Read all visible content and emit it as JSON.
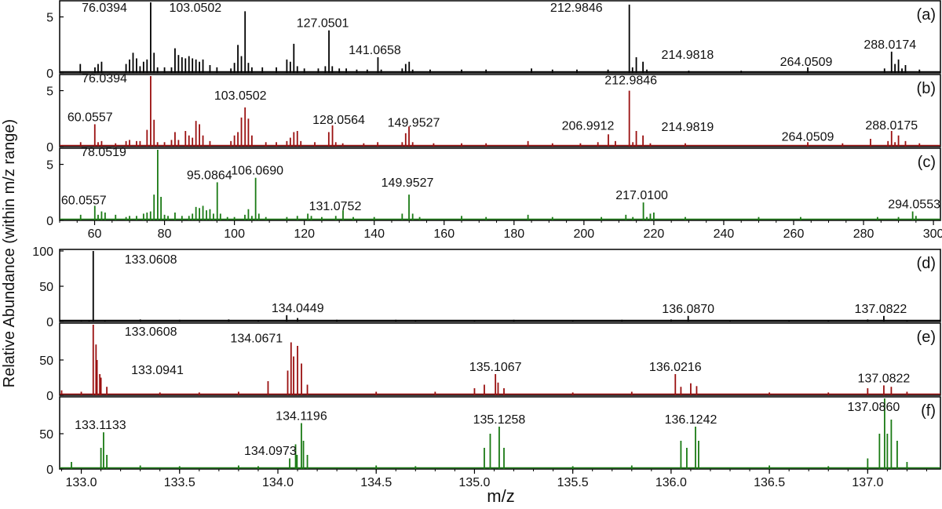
{
  "ylabel": "Relative Abundance (within m/z range)",
  "xlabel": "m/z",
  "chart_data": [
    {
      "type": "line",
      "id": "a",
      "panel_label": "(a)",
      "color": "#000000",
      "xlim": [
        50,
        302
      ],
      "ylim": [
        0,
        6.3
      ],
      "yticks": [
        0,
        5
      ],
      "ticks_on_axis": false,
      "peaks": [
        [
          55.9,
          0.8
        ],
        [
          60.1,
          0.5
        ],
        [
          61.0,
          0.8
        ],
        [
          62.0,
          1.0
        ],
        [
          69.0,
          0.8
        ],
        [
          70.0,
          1.2
        ],
        [
          71.0,
          1.8
        ],
        [
          72.0,
          1.3
        ],
        [
          73.0,
          0.6
        ],
        [
          74.0,
          1.0
        ],
        [
          75.0,
          1.2
        ],
        [
          76.0394,
          6.3
        ],
        [
          77.0,
          1.8
        ],
        [
          78.0,
          0.5
        ],
        [
          80.0,
          0.5
        ],
        [
          82.0,
          0.5
        ],
        [
          83.0,
          2.2
        ],
        [
          84.0,
          1.6
        ],
        [
          85.0,
          1.4
        ],
        [
          86.0,
          1.3
        ],
        [
          87.0,
          1.5
        ],
        [
          88.0,
          1.3
        ],
        [
          89.0,
          1.2
        ],
        [
          90.0,
          1.0
        ],
        [
          91.0,
          1.2
        ],
        [
          93.0,
          0.7
        ],
        [
          95.0,
          0.5
        ],
        [
          99.0,
          0.4
        ],
        [
          100.0,
          0.9
        ],
        [
          101.0,
          2.5
        ],
        [
          102.0,
          1.5
        ],
        [
          103.0502,
          5.5
        ],
        [
          104.0,
          0.9
        ],
        [
          105.0,
          0.5
        ],
        [
          108.0,
          0.5
        ],
        [
          112.0,
          0.5
        ],
        [
          115.0,
          1.2
        ],
        [
          116.0,
          1.0
        ],
        [
          117.0,
          2.6
        ],
        [
          118.0,
          0.6
        ],
        [
          120.0,
          0.4
        ],
        [
          124.0,
          0.4
        ],
        [
          126.0,
          0.6
        ],
        [
          127.0501,
          3.8
        ],
        [
          128.0,
          0.6
        ],
        [
          130.0,
          0.4
        ],
        [
          132.0,
          0.4
        ],
        [
          135.0,
          0.3
        ],
        [
          138.0,
          0.3
        ],
        [
          141.0658,
          1.4
        ],
        [
          142.0,
          0.3
        ],
        [
          148.0,
          0.4
        ],
        [
          149.0,
          0.8
        ],
        [
          150.0,
          1.0
        ],
        [
          151.0,
          0.3
        ],
        [
          156.0,
          0.3
        ],
        [
          165.0,
          0.3
        ],
        [
          172.0,
          0.3
        ],
        [
          185.0,
          0.4
        ],
        [
          191.0,
          0.3
        ],
        [
          198.0,
          0.3
        ],
        [
          206.9,
          0.3
        ],
        [
          212.9846,
          6.1
        ],
        [
          213.9,
          0.5
        ],
        [
          214.9818,
          1.4
        ],
        [
          216.9,
          1.0
        ],
        [
          218.0,
          0.3
        ],
        [
          230.0,
          0.2
        ],
        [
          245.0,
          0.2
        ],
        [
          264.0509,
          0.5
        ],
        [
          286.0,
          0.4
        ],
        [
          288.0174,
          1.9
        ],
        [
          289.0,
          0.8
        ],
        [
          290.0,
          1.2
        ],
        [
          291.0,
          0.4
        ],
        [
          292.0,
          0.7
        ],
        [
          296.0,
          0.3
        ]
      ],
      "labels": [
        "76.0394",
        "103.0502",
        "127.0501",
        "141.0658",
        "212.9846",
        "214.9818",
        "264.0509",
        "288.0174"
      ]
    },
    {
      "type": "line",
      "id": "b",
      "panel_label": "(b)",
      "color": "#9a1010",
      "xlim": [
        50,
        302
      ],
      "ylim": [
        0,
        6.3
      ],
      "yticks": [
        0,
        5
      ],
      "ticks_on_axis": false,
      "peaks": [
        [
          56.0,
          0.4
        ],
        [
          60.0557,
          2.0
        ],
        [
          61.0,
          0.4
        ],
        [
          62.0,
          0.5
        ],
        [
          66.0,
          0.3
        ],
        [
          69.0,
          0.5
        ],
        [
          70.0,
          0.6
        ],
        [
          72.0,
          0.5
        ],
        [
          73.0,
          0.5
        ],
        [
          75.0,
          1.5
        ],
        [
          76.0394,
          6.3
        ],
        [
          77.0,
          2.4
        ],
        [
          78.0,
          0.4
        ],
        [
          80.0,
          0.4
        ],
        [
          82.0,
          0.6
        ],
        [
          83.0,
          1.3
        ],
        [
          84.0,
          0.6
        ],
        [
          86.0,
          1.4
        ],
        [
          87.0,
          1.0
        ],
        [
          88.0,
          0.8
        ],
        [
          89.0,
          2.3
        ],
        [
          90.0,
          2.0
        ],
        [
          91.0,
          1.0
        ],
        [
          93.0,
          0.5
        ],
        [
          99.0,
          0.5
        ],
        [
          100.0,
          1.0
        ],
        [
          101.0,
          1.3
        ],
        [
          102.0,
          2.6
        ],
        [
          103.0502,
          3.5
        ],
        [
          104.0,
          2.5
        ],
        [
          105.0,
          1.0
        ],
        [
          109.0,
          0.4
        ],
        [
          112.0,
          0.4
        ],
        [
          115.0,
          0.5
        ],
        [
          116.0,
          0.8
        ],
        [
          117.0,
          1.3
        ],
        [
          118.0,
          1.4
        ],
        [
          119.0,
          0.5
        ],
        [
          123.0,
          0.4
        ],
        [
          127.0,
          1.3
        ],
        [
          128.0564,
          1.9
        ],
        [
          129.0,
          0.4
        ],
        [
          131.0,
          0.3
        ],
        [
          137.0,
          0.3
        ],
        [
          141.0,
          0.4
        ],
        [
          148.0,
          0.4
        ],
        [
          149.0,
          1.2
        ],
        [
          149.9527,
          1.8
        ],
        [
          151.0,
          0.4
        ],
        [
          157.0,
          0.3
        ],
        [
          165.0,
          0.3
        ],
        [
          172.0,
          0.3
        ],
        [
          184.0,
          0.5
        ],
        [
          191.0,
          0.3
        ],
        [
          199.0,
          0.3
        ],
        [
          204.0,
          0.4
        ],
        [
          206.9912,
          1.1
        ],
        [
          209.0,
          0.5
        ],
        [
          212.9846,
          5.0
        ],
        [
          214.0,
          0.4
        ],
        [
          214.9819,
          1.4
        ],
        [
          216.9,
          1.0
        ],
        [
          219.0,
          0.3
        ],
        [
          229.0,
          0.3
        ],
        [
          264.0509,
          0.4
        ],
        [
          274.0,
          0.3
        ],
        [
          282.0,
          0.7
        ],
        [
          287.0,
          0.5
        ],
        [
          288.0175,
          1.4
        ],
        [
          289.0,
          0.4
        ],
        [
          290.0,
          1.0
        ],
        [
          292.0,
          0.5
        ],
        [
          296.0,
          0.3
        ]
      ],
      "labels": [
        "60.0557",
        "76.0394",
        "103.0502",
        "128.0564",
        "149.9527",
        "206.9912",
        "212.9846",
        "214.9819",
        "264.0509",
        "288.0175"
      ]
    },
    {
      "type": "line",
      "id": "c",
      "panel_label": "(c)",
      "color": "#1a7a14",
      "xlim": [
        50,
        302
      ],
      "ylim": [
        0,
        6.3
      ],
      "yticks": [
        0,
        5
      ],
      "ticks_on_axis": false,
      "peaks": [
        [
          56.0,
          0.5
        ],
        [
          60.0557,
          1.3
        ],
        [
          61.0,
          0.5
        ],
        [
          62.0,
          0.8
        ],
        [
          63.0,
          0.7
        ],
        [
          66.0,
          0.5
        ],
        [
          69.0,
          0.3
        ],
        [
          70.0,
          0.4
        ],
        [
          72.0,
          0.4
        ],
        [
          74.0,
          0.6
        ],
        [
          75.0,
          0.7
        ],
        [
          76.0,
          0.8
        ],
        [
          77.0,
          2.3
        ],
        [
          78.0519,
          6.3
        ],
        [
          79.0,
          2.1
        ],
        [
          80.0,
          0.5
        ],
        [
          81.0,
          0.4
        ],
        [
          83.0,
          0.7
        ],
        [
          85.0,
          0.4
        ],
        [
          87.0,
          0.4
        ],
        [
          88.0,
          0.6
        ],
        [
          89.0,
          1.2
        ],
        [
          90.0,
          1.1
        ],
        [
          91.0,
          1.3
        ],
        [
          92.0,
          0.9
        ],
        [
          93.0,
          1.0
        ],
        [
          94.0,
          0.6
        ],
        [
          95.0864,
          3.4
        ],
        [
          96.0,
          0.6
        ],
        [
          98.0,
          0.3
        ],
        [
          100.0,
          0.3
        ],
        [
          103.0,
          0.5
        ],
        [
          104.0,
          1.0
        ],
        [
          105.0,
          0.4
        ],
        [
          106.069,
          3.8
        ],
        [
          107.0,
          0.6
        ],
        [
          109.0,
          0.3
        ],
        [
          115.0,
          0.3
        ],
        [
          118.0,
          0.4
        ],
        [
          121.0,
          0.6
        ],
        [
          122.0,
          0.4
        ],
        [
          125.0,
          0.3
        ],
        [
          129.0,
          0.4
        ],
        [
          131.0752,
          0.9
        ],
        [
          134.0,
          0.3
        ],
        [
          140.0,
          0.3
        ],
        [
          148.0,
          0.6
        ],
        [
          149.9527,
          2.3
        ],
        [
          151.0,
          0.6
        ],
        [
          153.0,
          0.3
        ],
        [
          165.0,
          0.4
        ],
        [
          172.0,
          0.3
        ],
        [
          184.0,
          0.5
        ],
        [
          191.0,
          0.3
        ],
        [
          205.0,
          0.3
        ],
        [
          212.0,
          0.5
        ],
        [
          214.0,
          0.3
        ],
        [
          217.01,
          1.6
        ],
        [
          218.0,
          0.3
        ],
        [
          219.0,
          0.6
        ],
        [
          220.0,
          0.7
        ],
        [
          229.0,
          0.3
        ],
        [
          250.0,
          0.3
        ],
        [
          262.0,
          0.3
        ],
        [
          284.0,
          0.3
        ],
        [
          290.0,
          0.3
        ],
        [
          294.0553,
          0.8
        ],
        [
          295.0,
          0.4
        ]
      ],
      "labels": [
        "60.0557",
        "78.0519",
        "95.0864",
        "106.0690",
        "131.0752",
        "149.9527",
        "217.0100",
        "294.0553"
      ]
    },
    {
      "type": "line",
      "id": "d",
      "panel_label": "(d)",
      "color": "#000000",
      "xlim": [
        132.89,
        137.37
      ],
      "ylim": [
        0,
        100
      ],
      "yticks": [
        0,
        50,
        100
      ],
      "ticks_on_axis": false,
      "peaks": [
        [
          133.0,
          1.0
        ],
        [
          133.04,
          2.0
        ],
        [
          133.0608,
          100
        ],
        [
          133.12,
          2.0
        ],
        [
          133.3,
          3.0
        ],
        [
          133.5,
          2.5
        ],
        [
          133.75,
          3.0
        ],
        [
          133.9,
          2.0
        ],
        [
          134.0449,
          9.0
        ],
        [
          134.1,
          5.0
        ],
        [
          134.3,
          2.5
        ],
        [
          134.6,
          2.5
        ],
        [
          134.7,
          2.0
        ],
        [
          135.0,
          2.0
        ],
        [
          135.2,
          2.5
        ],
        [
          135.5,
          2.0
        ],
        [
          135.75,
          2.5
        ],
        [
          136.0,
          3.0
        ],
        [
          136.087,
          8.0
        ],
        [
          136.3,
          2.0
        ],
        [
          136.6,
          2.0
        ],
        [
          136.8,
          2.0
        ],
        [
          137.0,
          3.0
        ],
        [
          137.0822,
          8.0
        ],
        [
          137.2,
          2.0
        ]
      ],
      "labels": [
        "133.0608",
        "134.0449",
        "136.0870",
        "137.0822"
      ]
    },
    {
      "type": "line",
      "id": "e",
      "panel_label": "(e)",
      "color": "#9a1010",
      "xlim": [
        132.89,
        137.37
      ],
      "ylim": [
        0,
        100
      ],
      "yticks": [
        0,
        50
      ],
      "ticks_on_axis": false,
      "peaks": [
        [
          132.9,
          7.0
        ],
        [
          133.0,
          5.0
        ],
        [
          133.0608,
          100
        ],
        [
          133.075,
          72.0
        ],
        [
          133.08,
          50.0
        ],
        [
          133.0941,
          30.0
        ],
        [
          133.1,
          25.0
        ],
        [
          133.13,
          12.0
        ],
        [
          133.4,
          4.0
        ],
        [
          133.6,
          4.0
        ],
        [
          133.8,
          5.0
        ],
        [
          133.95,
          20.0
        ],
        [
          134.05,
          35.0
        ],
        [
          134.0671,
          75.0
        ],
        [
          134.08,
          55.0
        ],
        [
          134.1,
          70.0
        ],
        [
          134.12,
          45.0
        ],
        [
          134.15,
          15.0
        ],
        [
          134.5,
          5.0
        ],
        [
          134.8,
          5.0
        ],
        [
          135.05,
          15.0
        ],
        [
          135.0,
          10.0
        ],
        [
          135.1067,
          30.0
        ],
        [
          135.12,
          18.0
        ],
        [
          135.15,
          10.0
        ],
        [
          135.5,
          4.0
        ],
        [
          135.8,
          5.0
        ],
        [
          136.0216,
          30.0
        ],
        [
          136.05,
          12.0
        ],
        [
          136.1,
          17.0
        ],
        [
          136.13,
          13.0
        ],
        [
          136.5,
          4.0
        ],
        [
          136.8,
          4.0
        ],
        [
          137.0,
          10.0
        ],
        [
          137.0822,
          14.0
        ],
        [
          137.12,
          12.0
        ],
        [
          137.2,
          5.0
        ]
      ],
      "labels": [
        "133.0608",
        "133.0941",
        "134.0671",
        "135.1067",
        "136.0216",
        "137.0822"
      ]
    },
    {
      "type": "line",
      "id": "f",
      "panel_label": "(f)",
      "color": "#1a7a14",
      "xlim": [
        132.89,
        137.37
      ],
      "ylim": [
        0,
        100
      ],
      "yticks": [
        0,
        50
      ],
      "ticks_on_axis": true,
      "peaks": [
        [
          132.95,
          10.0
        ],
        [
          133.1,
          30.0
        ],
        [
          133.1133,
          52.0
        ],
        [
          133.13,
          20.0
        ],
        [
          133.3,
          5.0
        ],
        [
          133.5,
          4.0
        ],
        [
          133.8,
          5.0
        ],
        [
          133.9,
          4.0
        ],
        [
          134.0973,
          20.0
        ],
        [
          134.06,
          15.0
        ],
        [
          134.09,
          35.0
        ],
        [
          134.1196,
          65.0
        ],
        [
          134.13,
          40.0
        ],
        [
          134.15,
          20.0
        ],
        [
          134.5,
          5.0
        ],
        [
          134.7,
          4.0
        ],
        [
          135.05,
          30.0
        ],
        [
          135.08,
          50.0
        ],
        [
          135.1258,
          60.0
        ],
        [
          135.15,
          30.0
        ],
        [
          135.5,
          4.0
        ],
        [
          135.8,
          5.0
        ],
        [
          136.05,
          40.0
        ],
        [
          136.08,
          30.0
        ],
        [
          136.1242,
          60.0
        ],
        [
          136.14,
          40.0
        ],
        [
          136.5,
          5.0
        ],
        [
          136.8,
          4.0
        ],
        [
          137.0,
          15.0
        ],
        [
          137.06,
          50.0
        ],
        [
          137.086,
          100
        ],
        [
          137.1,
          50.0
        ],
        [
          137.12,
          70.0
        ],
        [
          137.15,
          40.0
        ],
        [
          137.2,
          10.0
        ]
      ],
      "labels": [
        "133.1133",
        "134.0973",
        "134.1196",
        "135.1258",
        "136.1242",
        "137.0860"
      ]
    }
  ],
  "axis_top": {
    "xticks": [
      60,
      80,
      100,
      120,
      140,
      160,
      180,
      200,
      220,
      240,
      260,
      280,
      300
    ]
  },
  "axis_bottom": {
    "xticks": [
      133.0,
      133.5,
      134.0,
      134.5,
      135.0,
      135.5,
      136.0,
      136.5,
      137.0
    ],
    "xtick_labels": [
      "133.0",
      "133.5",
      "134.0",
      "134.5",
      "135.0",
      "135.5",
      "136.0",
      "136.5",
      "137.0"
    ]
  }
}
